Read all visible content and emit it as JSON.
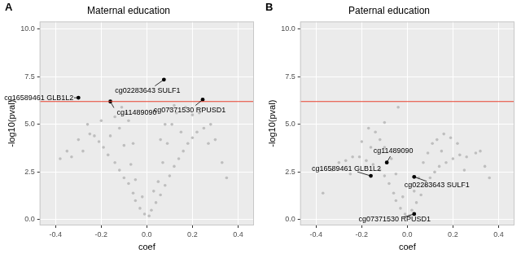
{
  "chart_data": [
    {
      "type": "scatter",
      "panel": "A",
      "title": "Maternal education",
      "x_label": "coef",
      "y_label": "-log10(pval)",
      "x": [
        0.01,
        -0.01,
        0.02,
        -0.03,
        0.04,
        -0.05,
        0.06,
        -0.06,
        0.08,
        -0.08,
        0.1,
        -0.1,
        0.12,
        -0.12,
        0.14,
        -0.14,
        0.16,
        -0.17,
        0.18,
        -0.19,
        0.2,
        -0.21,
        0.22,
        -0.23,
        0.25,
        -0.25,
        0.28,
        -0.3,
        0.05,
        -0.05,
        0.07,
        -0.07,
        0.09,
        -0.1,
        0.11,
        -0.12,
        0.13,
        -0.14,
        0.06,
        -0.06,
        0.1,
        -0.09,
        0.17,
        -0.2,
        0.3,
        -0.33,
        0.33,
        -0.38,
        -0.35,
        0.03,
        -0.02,
        0.15,
        -0.16,
        0.2,
        0.23,
        -0.26,
        0.12,
        -0.11,
        0.08,
        -0.08,
        0.27,
        -0.28,
        0.35
      ],
      "values": [
        0.2,
        0.3,
        0.5,
        0.6,
        0.9,
        1.0,
        1.3,
        1.4,
        1.8,
        1.9,
        2.3,
        2.2,
        2.8,
        2.6,
        3.2,
        3.0,
        3.6,
        3.4,
        4.0,
        3.8,
        4.3,
        4.1,
        4.6,
        4.4,
        4.8,
        4.5,
        5.0,
        4.2,
        2.0,
        2.1,
        3.0,
        2.9,
        4.0,
        3.9,
        5.0,
        4.8,
        5.6,
        5.4,
        4.2,
        4.0,
        5.8,
        5.6,
        5.9,
        5.2,
        4.2,
        3.3,
        3.0,
        3.2,
        3.6,
        1.5,
        1.2,
        4.6,
        4.4,
        5.5,
        5.6,
        5.0,
        6.0,
        5.9,
        5.0,
        5.2,
        4.0,
        3.6,
        2.2
      ],
      "color": "#bebebe",
      "highlights": {
        "x": [
          -0.3,
          0.075,
          -0.16,
          0.245
        ],
        "values": [
          6.4,
          7.35,
          6.2,
          6.3
        ],
        "labels": [
          "cg16589461 GLB1L2",
          "cg02283643 SULF1",
          "cg11489090",
          "cg07371530 RPUSD1"
        ],
        "color": "#000000"
      },
      "threshold": {
        "value": 6.2,
        "color": "#e8412f"
      },
      "xlim": [
        -0.47,
        0.47
      ],
      "xticks": [
        -0.4,
        -0.2,
        {
          "value": 0,
          "label": "0.0"
        },
        0.2,
        0.4
      ],
      "ylim": [
        -0.3,
        10.4
      ],
      "yticks": [
        {
          "value": 0,
          "label": "0.0"
        },
        2.5,
        {
          "value": 5,
          "label": "5.0"
        },
        7.5,
        {
          "value": 10,
          "label": "10.0"
        }
      ],
      "grid": true
    },
    {
      "type": "scatter",
      "panel": "B",
      "title": "Paternal education",
      "x_label": "coef",
      "y_label": "-log10(pval)",
      "x": [
        0.01,
        -0.01,
        0.02,
        -0.03,
        0.04,
        -0.05,
        0.06,
        -0.06,
        0.08,
        -0.08,
        0.1,
        -0.1,
        0.12,
        -0.12,
        0.14,
        -0.15,
        0.17,
        -0.18,
        0.2,
        -0.21,
        0.23,
        -0.24,
        0.26,
        -0.27,
        0.3,
        -0.3,
        0.05,
        -0.05,
        0.07,
        -0.07,
        0.09,
        -0.1,
        0.11,
        -0.12,
        0.13,
        -0.14,
        0.16,
        -0.17,
        0.19,
        -0.2,
        0.22,
        -0.1,
        -0.04,
        0.32,
        -0.33,
        0.34,
        0.36,
        -0.37,
        0.03,
        -0.02,
        0.15,
        -0.16,
        0.25,
        -0.25
      ],
      "values": [
        0.2,
        0.3,
        0.5,
        0.6,
        0.9,
        1.0,
        1.3,
        1.4,
        1.8,
        1.9,
        2.2,
        2.3,
        2.5,
        2.6,
        2.8,
        2.9,
        3.0,
        3.1,
        3.2,
        3.3,
        3.4,
        3.3,
        3.3,
        3.1,
        3.5,
        3.0,
        2.2,
        2.4,
        3.0,
        3.2,
        3.5,
        3.8,
        4.0,
        4.2,
        4.2,
        4.6,
        4.5,
        4.8,
        4.3,
        4.1,
        4.0,
        5.1,
        5.9,
        3.6,
        2.6,
        2.8,
        2.2,
        1.4,
        1.5,
        1.2,
        3.6,
        3.8,
        2.6,
        2.4
      ],
      "color": "#bebebe",
      "highlights": {
        "x": [
          -0.16,
          0.03,
          -0.09,
          0.03
        ],
        "values": [
          2.3,
          2.25,
          3.0,
          0.3
        ],
        "labels": [
          "cg16589461 GLB1L2",
          "cg02283643 SULF1",
          "cg11489090",
          "cg07371530 RPUSD1"
        ],
        "color": "#000000"
      },
      "threshold": {
        "value": 6.2,
        "color": "#e8412f"
      },
      "xlim": [
        -0.47,
        0.47
      ],
      "xticks": [
        -0.4,
        -0.2,
        {
          "value": 0,
          "label": "0.0"
        },
        0.2,
        0.4
      ],
      "ylim": [
        -0.3,
        10.4
      ],
      "yticks": [
        {
          "value": 0,
          "label": "0.0"
        },
        2.5,
        {
          "value": 5,
          "label": "5.0"
        },
        7.5,
        {
          "value": 10,
          "label": "10.0"
        }
      ],
      "grid": true
    }
  ]
}
